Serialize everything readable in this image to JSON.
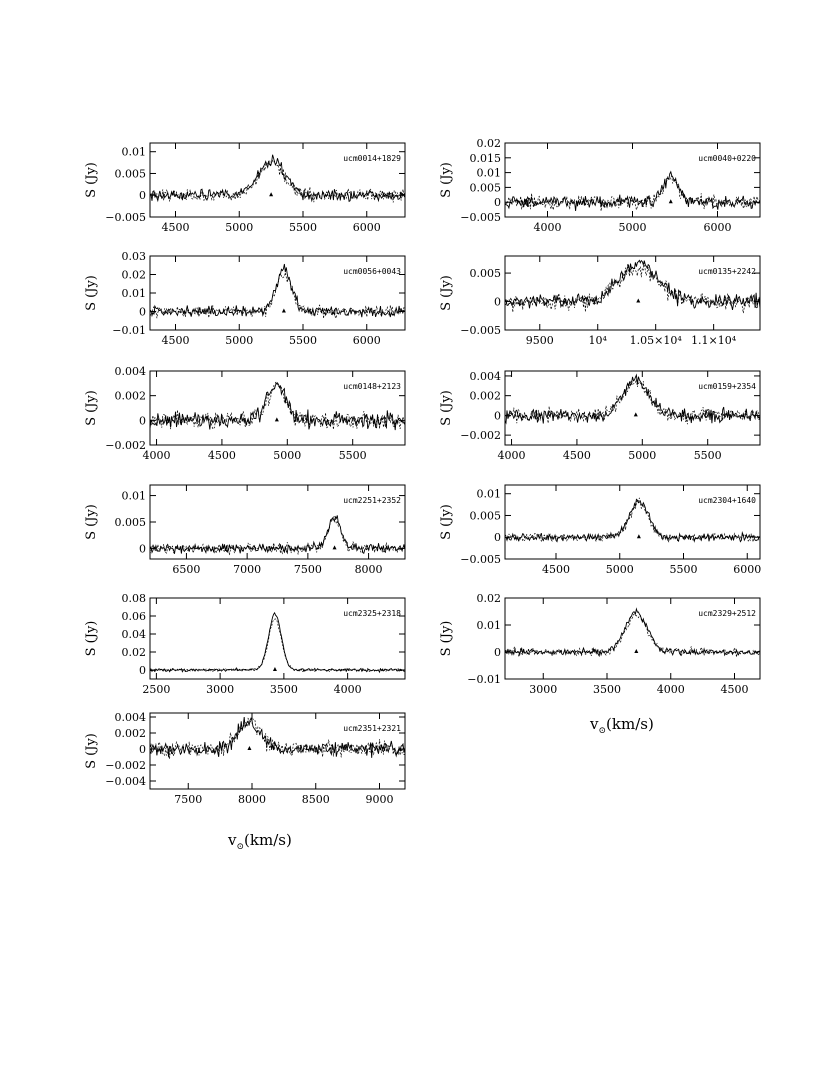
{
  "figure": {
    "ylabel": "S (Jy)",
    "xlabel_left": "v",
    "xlabel_right": "v",
    "xlabel_sub": "⊙",
    "xlabel_unit": "(km/s)"
  },
  "chart_data": [
    {
      "type": "line",
      "name": "ucm0014+1829",
      "xlim": [
        4300,
        6300
      ],
      "ylim": [
        -0.005,
        0.012
      ],
      "xticks": [
        4500,
        5000,
        5500,
        6000
      ],
      "xtick_labels": [
        "4500",
        "5000",
        "5500",
        "6000"
      ],
      "yticks": [
        -0.005,
        0,
        0.005,
        0.01
      ],
      "ytick_labels": [
        "−0.005",
        "0",
        "0.005",
        "0.01"
      ],
      "noise": 0.0012,
      "line_center": 5250,
      "line_width": 180,
      "line_peak": 0.008,
      "marker_v": 5250
    },
    {
      "type": "line",
      "name": "ucm0040+0220",
      "xlim": [
        3500,
        6500
      ],
      "ylim": [
        -0.005,
        0.02
      ],
      "xticks": [
        4000,
        5000,
        6000
      ],
      "xtick_labels": [
        "4000",
        "5000",
        "6000"
      ],
      "yticks": [
        -0.005,
        0,
        0.005,
        0.01,
        0.015,
        0.02
      ],
      "ytick_labels": [
        "−0.005",
        "0",
        "0.005",
        "0.01",
        "0.015",
        "0.02"
      ],
      "noise": 0.002,
      "line_center": 5450,
      "line_width": 150,
      "line_peak": 0.009,
      "marker_v": 5450
    },
    {
      "type": "line",
      "name": "ucm0056+0043",
      "xlim": [
        4300,
        6300
      ],
      "ylim": [
        -0.01,
        0.03
      ],
      "xticks": [
        4500,
        5000,
        5500,
        6000
      ],
      "xtick_labels": [
        "4500",
        "5000",
        "5500",
        "6000"
      ],
      "yticks": [
        -0.01,
        0,
        0.01,
        0.02,
        0.03
      ],
      "ytick_labels": [
        "−0.01",
        "0",
        "0.01",
        "0.02",
        "0.03"
      ],
      "noise": 0.0025,
      "line_center": 5350,
      "line_width": 110,
      "line_peak": 0.022,
      "marker_v": 5350
    },
    {
      "type": "line",
      "name": "ucm0135+2242",
      "xlim": [
        9200,
        11400
      ],
      "ylim": [
        -0.005,
        0.008
      ],
      "xticks": [
        9500,
        10000,
        10500,
        11000
      ],
      "xtick_labels": [
        "9500",
        "10⁴",
        "1.05×10⁴",
        "1.1×10⁴"
      ],
      "yticks": [
        -0.005,
        0,
        0.005
      ],
      "ytick_labels": [
        "−0.005",
        "0",
        "0.005"
      ],
      "noise": 0.0012,
      "line_center": 10350,
      "line_width": 300,
      "line_peak": 0.0065,
      "marker_v": 10350
    },
    {
      "type": "line",
      "name": "ucm0148+2123",
      "xlim": [
        3950,
        5900
      ],
      "ylim": [
        -0.002,
        0.004
      ],
      "xticks": [
        4000,
        4500,
        5000,
        5500
      ],
      "xtick_labels": [
        "4000",
        "4500",
        "5000",
        "5500"
      ],
      "yticks": [
        -0.002,
        0,
        0.002,
        0.004
      ],
      "ytick_labels": [
        "−0.002",
        "0",
        "0.002",
        "0.004"
      ],
      "noise": 0.0006,
      "line_center": 4920,
      "line_width": 120,
      "line_peak": 0.003,
      "marker_v": 4920
    },
    {
      "type": "line",
      "name": "ucm0159+2354",
      "xlim": [
        3950,
        5900
      ],
      "ylim": [
        -0.003,
        0.0045
      ],
      "xticks": [
        4000,
        4500,
        5000,
        5500
      ],
      "xtick_labels": [
        "4000",
        "4500",
        "5000",
        "5500"
      ],
      "yticks": [
        -0.002,
        0,
        0.002,
        0.004
      ],
      "ytick_labels": [
        "−0.002",
        "0",
        "0.002",
        "0.004"
      ],
      "noise": 0.0006,
      "line_center": 4950,
      "line_width": 180,
      "line_peak": 0.0035,
      "marker_v": 4950
    },
    {
      "type": "line",
      "name": "ucm2251+2352",
      "xlim": [
        6200,
        8300
      ],
      "ylim": [
        -0.002,
        0.012
      ],
      "xticks": [
        6500,
        7000,
        7500,
        8000
      ],
      "xtick_labels": [
        "6500",
        "7000",
        "7500",
        "8000"
      ],
      "yticks": [
        0,
        0.005,
        0.01
      ],
      "ytick_labels": [
        "0",
        "0.005",
        "0.01"
      ],
      "noise": 0.0008,
      "line_center": 7720,
      "line_width": 90,
      "line_peak": 0.006,
      "marker_v": 7720
    },
    {
      "type": "line",
      "name": "ucm2304+1640",
      "xlim": [
        4100,
        6100
      ],
      "ylim": [
        -0.005,
        0.012
      ],
      "xticks": [
        4500,
        5000,
        5500,
        6000
      ],
      "xtick_labels": [
        "4500",
        "5000",
        "5500",
        "6000"
      ],
      "yticks": [
        -0.005,
        0,
        0.005,
        0.01
      ],
      "ytick_labels": [
        "−0.005",
        "0",
        "0.005",
        "0.01"
      ],
      "noise": 0.0008,
      "line_center": 5150,
      "line_width": 130,
      "line_peak": 0.0085,
      "marker_v": 5150
    },
    {
      "type": "line",
      "name": "ucm2325+2318",
      "xlim": [
        2450,
        4450
      ],
      "ylim": [
        -0.01,
        0.08
      ],
      "xticks": [
        2500,
        3000,
        3500,
        4000
      ],
      "xtick_labels": [
        "2500",
        "3000",
        "3500",
        "4000"
      ],
      "yticks": [
        0,
        0.02,
        0.04,
        0.06,
        0.08
      ],
      "ytick_labels": [
        "0",
        "0.02",
        "0.04",
        "0.06",
        "0.08"
      ],
      "noise": 0.0015,
      "line_center": 3430,
      "line_width": 90,
      "line_peak": 0.062,
      "marker_v": 3430
    },
    {
      "type": "line",
      "name": "ucm2329+2512",
      "xlim": [
        2700,
        4700
      ],
      "ylim": [
        -0.01,
        0.02
      ],
      "xticks": [
        3000,
        3500,
        4000,
        4500
      ],
      "xtick_labels": [
        "3000",
        "3500",
        "4000",
        "4500"
      ],
      "yticks": [
        -0.01,
        0,
        0.01,
        0.02
      ],
      "ytick_labels": [
        "−0.01",
        "0",
        "0.01",
        "0.02"
      ],
      "noise": 0.0012,
      "line_center": 3730,
      "line_width": 150,
      "line_peak": 0.015,
      "marker_v": 3730
    },
    {
      "type": "line",
      "name": "ucm2351+2321",
      "xlim": [
        7200,
        9200
      ],
      "ylim": [
        -0.005,
        0.0045
      ],
      "xticks": [
        7500,
        8000,
        8500,
        9000
      ],
      "xtick_labels": [
        "7500",
        "8000",
        "8500",
        "9000"
      ],
      "yticks": [
        -0.004,
        -0.002,
        0,
        0.002,
        0.004
      ],
      "ytick_labels": [
        "−0.004",
        "−0.002",
        "0",
        "0.002",
        "0.004"
      ],
      "noise": 0.0008,
      "line_center": 7980,
      "line_width": 160,
      "line_peak": 0.0035,
      "marker_v": 7980
    }
  ]
}
